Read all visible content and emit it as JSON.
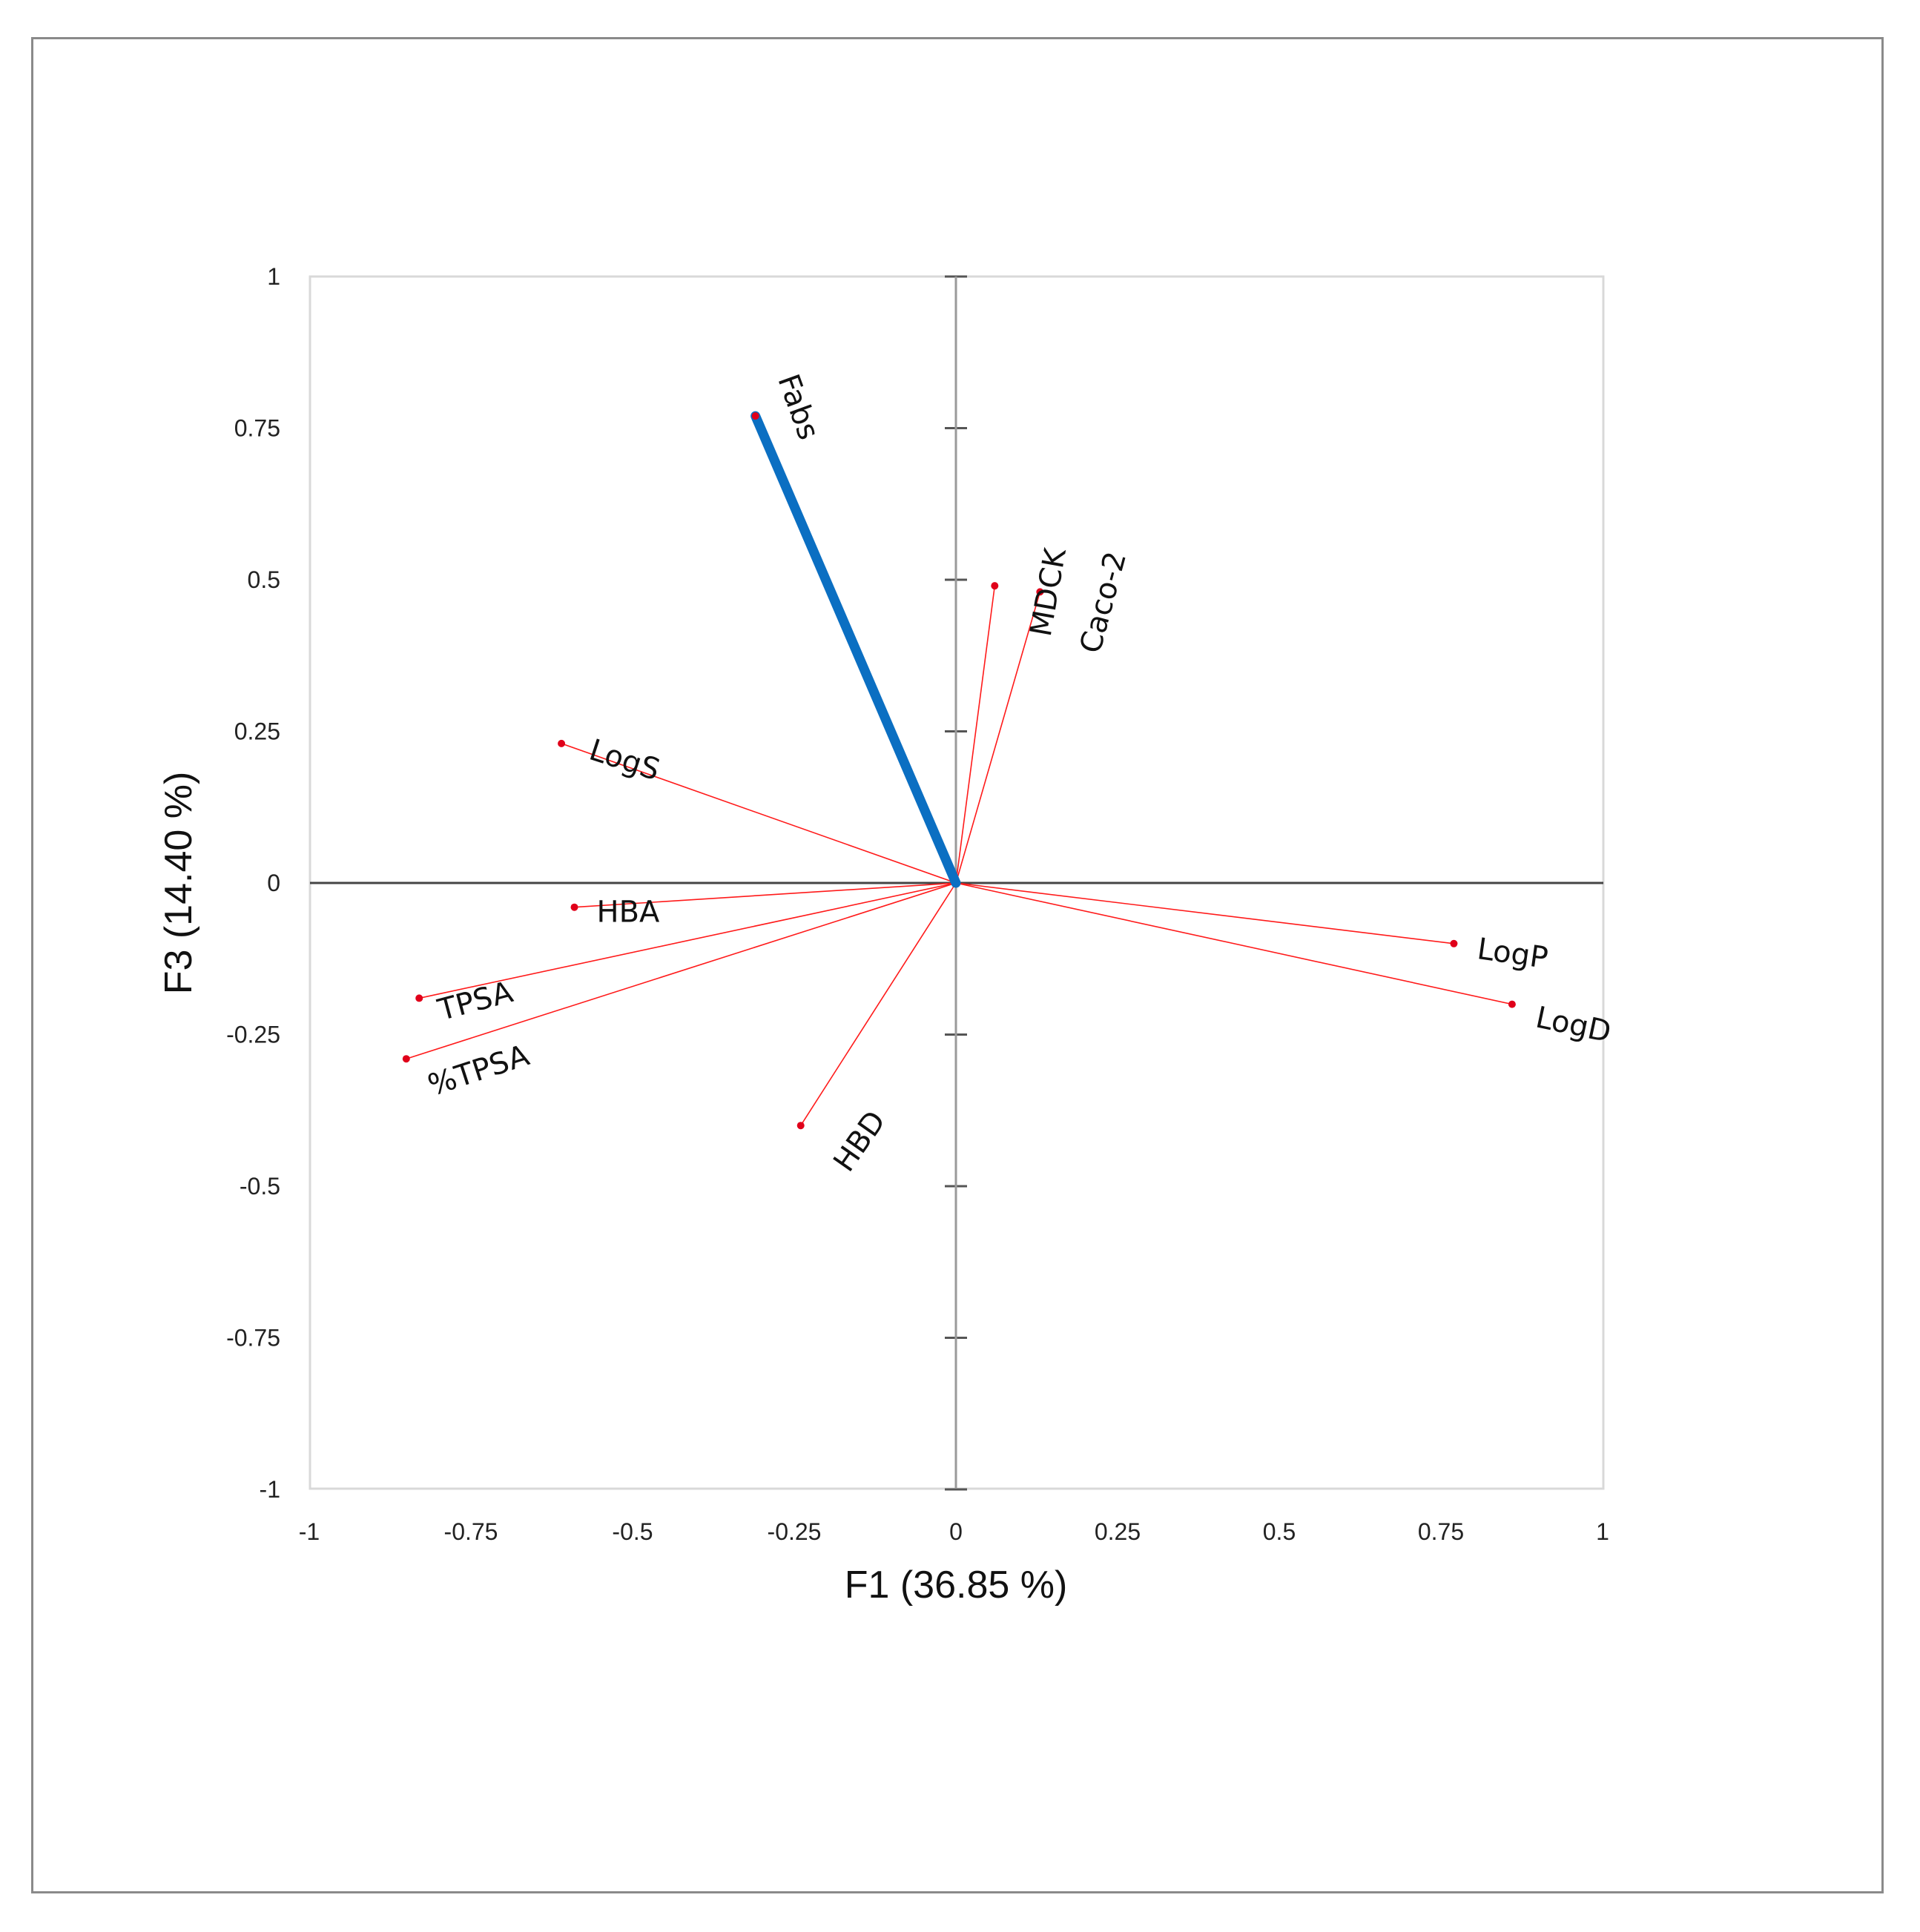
{
  "chart_data": {
    "type": "scatter",
    "subtype": "pca-correlation-circle-biplot",
    "title": "",
    "xlabel": "F1 (36.85 %)",
    "ylabel": "F3 (14.40 %)",
    "xlim": [
      -1,
      1
    ],
    "ylim": [
      -1,
      1
    ],
    "x_ticks": [
      "-1",
      "-0.75",
      "-0.5",
      "-0.25",
      "0",
      "0.25",
      "0.5",
      "0.75",
      "1"
    ],
    "y_ticks": [
      "1",
      "0.75",
      "0.5",
      "0.25",
      "0",
      "-0.25",
      "-0.5",
      "-0.75",
      "-1"
    ],
    "grid": false,
    "legend": null,
    "vectors": [
      {
        "name": "Fabs",
        "x": -0.31,
        "y": 0.77,
        "highlight": true,
        "label_angle": 70,
        "label_dx": 30,
        "label_dy": -50
      },
      {
        "name": "MDCK",
        "x": 0.06,
        "y": 0.49,
        "highlight": false,
        "label_angle": -80,
        "label_dx": 75,
        "label_dy": 70
      },
      {
        "name": "Caco-2",
        "x": 0.13,
        "y": 0.48,
        "highlight": false,
        "label_angle": -75,
        "label_dx": 80,
        "label_dy": 85
      },
      {
        "name": "LogS",
        "x": -0.61,
        "y": 0.23,
        "highlight": false,
        "label_angle": 18,
        "label_dx": 35,
        "label_dy": 20
      },
      {
        "name": "HBA",
        "x": -0.59,
        "y": -0.04,
        "highlight": false,
        "label_angle": 0,
        "label_dx": 30,
        "label_dy": 20
      },
      {
        "name": "TPSA",
        "x": -0.83,
        "y": -0.19,
        "highlight": false,
        "label_angle": -15,
        "label_dx": 30,
        "label_dy": 30
      },
      {
        "name": "%TPSA",
        "x": -0.85,
        "y": -0.29,
        "highlight": false,
        "label_angle": -18,
        "label_dx": 35,
        "label_dy": 50
      },
      {
        "name": "HBD",
        "x": -0.24,
        "y": -0.4,
        "highlight": false,
        "label_angle": -55,
        "label_dx": 65,
        "label_dy": 65
      },
      {
        "name": "LogP",
        "x": 0.77,
        "y": -0.1,
        "highlight": false,
        "label_angle": 8,
        "label_dx": 30,
        "label_dy": 20
      },
      {
        "name": "LogD",
        "x": 0.86,
        "y": -0.2,
        "highlight": false,
        "label_angle": 12,
        "label_dx": 30,
        "label_dy": 30
      }
    ],
    "colors": {
      "vector": "#ff1a1a",
      "highlight_vector": "#0b6fc2",
      "axis": "#333333",
      "plot_border": "#d9d9d9",
      "frame": "#8a8a8a"
    }
  }
}
